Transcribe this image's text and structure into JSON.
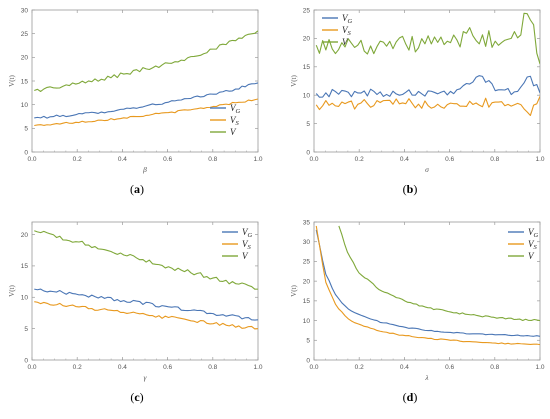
{
  "colors": {
    "V_G": "#4a76b5",
    "V_S": "#e8991f",
    "V": "#7fa83a",
    "axis": "#9a9a9a"
  },
  "chart_data": [
    {
      "id": "a",
      "type": "line",
      "panel_label": "(a)",
      "xlabel": "β",
      "ylabel": "V(t)",
      "xlim": [
        0,
        1
      ],
      "ylim": [
        0,
        30
      ],
      "xticks": [
        0.0,
        0.2,
        0.4,
        0.6,
        0.8,
        1.0
      ],
      "xtick_labels": [
        "0.0",
        "0.2",
        "0.4",
        "0.6",
        "0.8",
        "1.0"
      ],
      "yticks": [
        0,
        5,
        10,
        15,
        20,
        25,
        30
      ],
      "ytick_labels": [
        "0",
        "5",
        "10",
        "15",
        "20",
        "25",
        "30"
      ],
      "legend": "right-middle",
      "series": [
        {
          "name": "V_G",
          "label_main": "V",
          "label_sub": "G",
          "color": "V_G",
          "x": [
            0.01,
            0.1,
            0.2,
            0.3,
            0.4,
            0.5,
            0.6,
            0.7,
            0.8,
            0.9,
            1.0
          ],
          "y": [
            7.2,
            7.5,
            7.9,
            8.4,
            9.0,
            9.7,
            10.5,
            11.3,
            12.2,
            13.3,
            14.6
          ],
          "noise": 0.25
        },
        {
          "name": "V_S",
          "label_main": "V",
          "label_sub": "S",
          "color": "V_S",
          "x": [
            0.01,
            0.1,
            0.2,
            0.3,
            0.4,
            0.5,
            0.6,
            0.7,
            0.8,
            0.9,
            1.0
          ],
          "y": [
            5.6,
            5.9,
            6.3,
            6.7,
            7.2,
            7.7,
            8.3,
            8.9,
            9.6,
            10.4,
            11.2
          ],
          "noise": 0.2
        },
        {
          "name": "V",
          "label_main": "V",
          "label_sub": "",
          "color": "V",
          "x": [
            0.01,
            0.1,
            0.2,
            0.3,
            0.4,
            0.5,
            0.6,
            0.7,
            0.8,
            0.9,
            1.0
          ],
          "y": [
            13.0,
            13.6,
            14.4,
            15.3,
            16.4,
            17.5,
            18.7,
            20.1,
            21.7,
            23.5,
            25.6
          ],
          "noise": 0.45
        }
      ]
    },
    {
      "id": "b",
      "type": "line",
      "panel_label": "(b)",
      "xlabel": "σ",
      "ylabel": "V(t)",
      "xlim": [
        0,
        1
      ],
      "ylim": [
        0,
        25
      ],
      "xticks": [
        0.0,
        0.2,
        0.4,
        0.6,
        0.8,
        1.0
      ],
      "xtick_labels": [
        "0.0",
        "0.2",
        "0.4",
        "0.6",
        "0.8",
        "1.0"
      ],
      "yticks": [
        0,
        5,
        10,
        15,
        20,
        25
      ],
      "ytick_labels": [
        "0",
        "5",
        "10",
        "15",
        "20",
        "25"
      ],
      "legend": "top-left",
      "series": [
        {
          "name": "V_G",
          "label_main": "V",
          "label_sub": "G",
          "color": "V_G",
          "x": [
            0.01,
            0.2,
            0.4,
            0.6,
            0.75,
            0.8,
            0.9,
            0.95,
            1.0
          ],
          "y": [
            10.3,
            10.4,
            10.5,
            10.6,
            13.4,
            10.8,
            10.6,
            13.6,
            10.4
          ],
          "noise": 0.7
        },
        {
          "name": "V_S",
          "label_main": "V",
          "label_sub": "S",
          "color": "V_S",
          "x": [
            0.01,
            0.2,
            0.4,
            0.6,
            0.8,
            0.9,
            0.95,
            1.0
          ],
          "y": [
            8.3,
            8.4,
            8.5,
            8.6,
            8.8,
            8.6,
            6.8,
            9.8
          ],
          "noise": 0.9
        },
        {
          "name": "V",
          "label_main": "V",
          "label_sub": "",
          "color": "V",
          "x": [
            0.01,
            0.2,
            0.4,
            0.6,
            0.7,
            0.8,
            0.9,
            0.95,
            1.0
          ],
          "y": [
            18.8,
            18.8,
            19.0,
            19.2,
            20.5,
            19.5,
            20.0,
            25.0,
            15.5
          ],
          "noise": 1.6
        }
      ]
    },
    {
      "id": "c",
      "type": "line",
      "panel_label": "(c)",
      "xlabel": "γ",
      "ylabel": "V(t)",
      "xlim": [
        0,
        1
      ],
      "ylim": [
        0,
        22
      ],
      "xticks": [
        0.0,
        0.2,
        0.4,
        0.6,
        0.8,
        1.0
      ],
      "xtick_labels": [
        "0.0",
        "0.2",
        "0.4",
        "0.6",
        "0.8",
        "1.0"
      ],
      "yticks": [
        0,
        5,
        10,
        15,
        20
      ],
      "ytick_labels": [
        "0",
        "5",
        "10",
        "15",
        "20"
      ],
      "legend": "top-right",
      "series": [
        {
          "name": "V_G",
          "label_main": "V",
          "label_sub": "G",
          "color": "V_G",
          "x": [
            0.01,
            0.2,
            0.4,
            0.6,
            0.8,
            1.0
          ],
          "y": [
            11.3,
            10.5,
            9.5,
            8.5,
            7.4,
            6.4
          ],
          "noise": 0.25
        },
        {
          "name": "V_S",
          "label_main": "V",
          "label_sub": "S",
          "color": "V_S",
          "x": [
            0.01,
            0.2,
            0.4,
            0.6,
            0.8,
            1.0
          ],
          "y": [
            9.3,
            8.5,
            7.6,
            6.8,
            5.8,
            5.0
          ],
          "noise": 0.25
        },
        {
          "name": "V",
          "label_main": "V",
          "label_sub": "",
          "color": "V",
          "x": [
            0.01,
            0.2,
            0.4,
            0.6,
            0.8,
            1.0
          ],
          "y": [
            20.6,
            18.8,
            16.8,
            14.9,
            13.1,
            11.3
          ],
          "noise": 0.35
        }
      ]
    },
    {
      "id": "d",
      "type": "line",
      "panel_label": "(d)",
      "xlabel": "λ",
      "ylabel": "V(t)",
      "xlim": [
        0,
        1
      ],
      "ylim": [
        0,
        35
      ],
      "xticks": [
        0.0,
        0.2,
        0.4,
        0.6,
        0.8,
        1.0
      ],
      "xtick_labels": [
        "0.0",
        "0.2",
        "0.4",
        "0.6",
        "0.8",
        "1.0"
      ],
      "yticks": [
        0,
        5,
        10,
        15,
        20,
        25,
        30,
        35
      ],
      "ytick_labels": [
        "0",
        "5",
        "10",
        "15",
        "20",
        "25",
        "30",
        "35"
      ],
      "legend": "top-right",
      "series": [
        {
          "name": "V_G",
          "label_main": "V",
          "label_sub": "G",
          "color": "V_G",
          "x": [
            0.01,
            0.05,
            0.1,
            0.15,
            0.2,
            0.3,
            0.4,
            0.5,
            0.6,
            0.8,
            1.0
          ],
          "y": [
            33.0,
            22.0,
            16.0,
            13.0,
            11.5,
            9.5,
            8.3,
            7.5,
            7.0,
            6.4,
            6.0
          ],
          "noise": 0.15
        },
        {
          "name": "V_S",
          "label_main": "V",
          "label_sub": "S",
          "color": "V_S",
          "x": [
            0.01,
            0.05,
            0.1,
            0.15,
            0.2,
            0.3,
            0.4,
            0.5,
            0.6,
            0.8,
            1.0
          ],
          "y": [
            34.0,
            20.0,
            13.5,
            10.5,
            9.0,
            7.2,
            6.2,
            5.5,
            5.0,
            4.3,
            3.9
          ],
          "noise": 0.15
        },
        {
          "name": "V",
          "label_main": "V",
          "label_sub": "",
          "color": "V",
          "x": [
            0.11,
            0.15,
            0.2,
            0.3,
            0.4,
            0.5,
            0.6,
            0.7,
            0.8,
            0.9,
            1.0
          ],
          "y": [
            34.0,
            27.0,
            22.0,
            17.5,
            15.0,
            13.3,
            12.2,
            11.4,
            10.8,
            10.3,
            10.0
          ],
          "noise": 0.2
        }
      ]
    }
  ]
}
